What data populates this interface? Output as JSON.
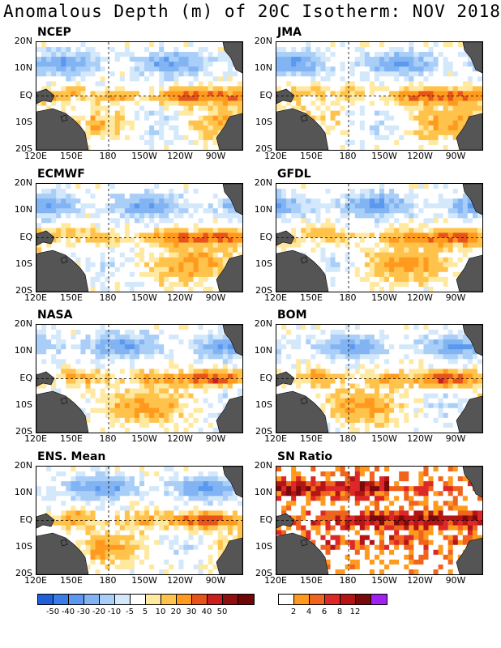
{
  "title": "Anomalous Depth (m) of 20C Isotherm: NOV 2018",
  "lat_labels": [
    "20N",
    "10N",
    "EQ",
    "10S",
    "20S"
  ],
  "lon_labels": [
    "120E",
    "150E",
    "180",
    "150W",
    "120W",
    "90W"
  ],
  "chart_data": {
    "type": "heatmap",
    "panels": [
      {
        "name": "NCEP"
      },
      {
        "name": "JMA"
      },
      {
        "name": "ECMWF"
      },
      {
        "name": "GFDL"
      },
      {
        "name": "NASA"
      },
      {
        "name": "BOM"
      },
      {
        "name": "ENS. Mean"
      },
      {
        "name": "SN Ratio"
      }
    ],
    "anomaly_colorbar": {
      "tick_labels": [
        "-50",
        "-40",
        "-30",
        "-20",
        "-10",
        "-5",
        "5",
        "10",
        "20",
        "30",
        "40",
        "50"
      ],
      "colors": [
        "#1f5fd8",
        "#3a7de6",
        "#5b98ee",
        "#82b4f3",
        "#a9cef7",
        "#d4e8fb",
        "#ffffff",
        "#ffe9a0",
        "#ffc24a",
        "#ff9a1e",
        "#e8531a",
        "#c81e1e",
        "#8e1010",
        "#6e0808"
      ]
    },
    "snr_colorbar": {
      "tick_labels": [
        "2",
        "4",
        "6",
        "8",
        "12"
      ],
      "colors": [
        "#ffffff",
        "#ff9a1e",
        "#f0641e",
        "#dc2828",
        "#b41414",
        "#780a0a",
        "#a020f0"
      ]
    }
  }
}
